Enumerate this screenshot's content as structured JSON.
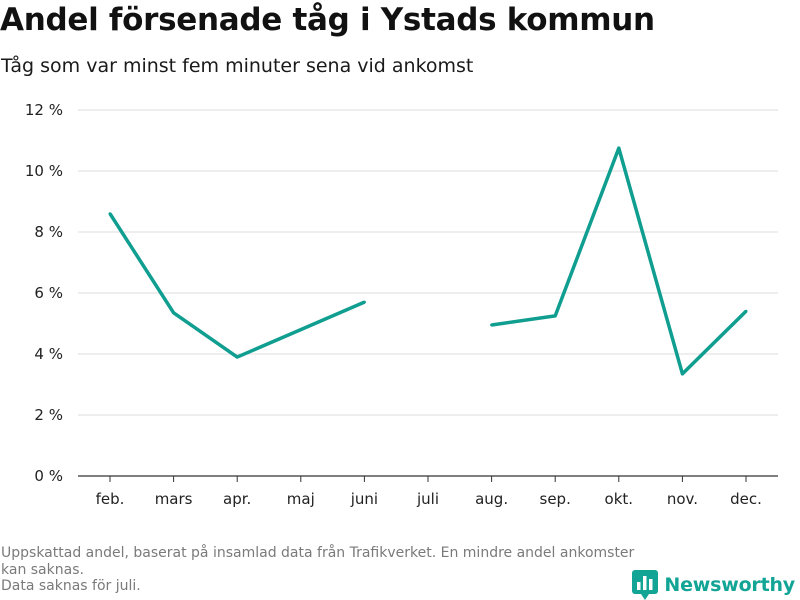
{
  "header": {
    "title": "Andel försenade tåg i Ystads kommun",
    "subtitle": "Tåg som var minst fem minuter sena vid ankomst"
  },
  "footer": {
    "note_line1": "Uppskattad andel, baserat på insamlad data från Trafikverket. En mindre andel ankomster kan saknas.",
    "note_line2": "Data saknas för juli.",
    "brand": "Newsworthy",
    "logo_icon": "bar-chart-logo-icon",
    "brand_color": "#12a596"
  },
  "chart_data": {
    "type": "line",
    "title": "Andel försenade tåg i Ystads kommun",
    "subtitle": "Tåg som var minst fem minuter sena vid ankomst",
    "categories": [
      "feb.",
      "mars",
      "apr.",
      "maj",
      "juni",
      "juli",
      "aug.",
      "sep.",
      "okt.",
      "nov.",
      "dec."
    ],
    "series": [
      {
        "values": [
          8.6,
          5.35,
          3.9,
          4.8,
          5.7,
          null,
          4.95,
          5.25,
          10.75,
          3.35,
          5.4
        ]
      }
    ],
    "y_ticks": [
      0,
      2,
      4,
      6,
      8,
      10,
      12
    ],
    "y_tick_labels": [
      "0 %",
      "2 %",
      "4 %",
      "6 %",
      "8 %",
      "10 %",
      "12 %"
    ],
    "ylim": [
      0,
      12
    ],
    "grid": true,
    "line_color": "#0f9e90",
    "grid_color": "#dcdcdc"
  }
}
